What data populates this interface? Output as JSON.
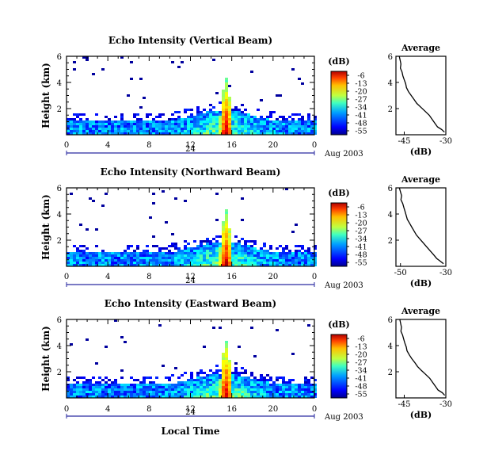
{
  "chart_data": [
    {
      "type": "heatmap",
      "title": "Echo Intensity (Vertical Beam)",
      "ylabel": "Height (km)",
      "xlim": [
        0,
        24
      ],
      "ylim": [
        0,
        6
      ],
      "x_ticks": [
        "0",
        "4",
        "8",
        "12",
        "16",
        "20",
        "0"
      ],
      "y_ticks": [
        "2",
        "4",
        "6"
      ],
      "date_label": "24",
      "date_suffix": "Aug 2003",
      "colorbar": {
        "label": "(dB)",
        "ticks": [
          "-6",
          "-13",
          "-20",
          "-27",
          "-34",
          "-41",
          "-48",
          "-55"
        ],
        "range": [
          -55,
          -6
        ]
      },
      "average_profile": {
        "title": "Average",
        "xlabel": "(dB)",
        "x_ticks": [
          "-45",
          "-30"
        ],
        "xlim": [
          -48,
          -30
        ],
        "y_ticks": [
          "2",
          "4",
          "6"
        ],
        "ylim": [
          0,
          6
        ],
        "x": [
          -46.8,
          -46.5,
          -46.2,
          -46.4,
          -45.8,
          -45.5,
          -45.0,
          -44.5,
          -44.2,
          -43.5,
          -42.5,
          -41.5,
          -40.5,
          -39.0,
          -37.5,
          -36.0,
          -35.0,
          -34.0,
          -33.0,
          -31.5,
          -30.5
        ],
        "y": [
          6.0,
          5.7,
          5.4,
          5.1,
          4.8,
          4.5,
          4.2,
          3.9,
          3.6,
          3.3,
          3.0,
          2.7,
          2.4,
          2.1,
          1.8,
          1.5,
          1.2,
          0.9,
          0.6,
          0.4,
          0.2
        ]
      }
    },
    {
      "type": "heatmap",
      "title": "Echo Intensity (Northward Beam)",
      "ylabel": "Height (km)",
      "xlim": [
        0,
        24
      ],
      "ylim": [
        0,
        6
      ],
      "x_ticks": [
        "0",
        "4",
        "8",
        "12",
        "16",
        "20",
        "0"
      ],
      "y_ticks": [
        "2",
        "4",
        "6"
      ],
      "date_label": "24",
      "date_suffix": "Aug 2003",
      "colorbar": {
        "label": "(dB)",
        "ticks": [
          "-6",
          "-13",
          "-20",
          "-27",
          "-34",
          "-41",
          "-48",
          "-55"
        ],
        "range": [
          -55,
          -6
        ]
      },
      "average_profile": {
        "title": "Average",
        "xlabel": "(dB)",
        "x_ticks": [
          "-50",
          "-30"
        ],
        "xlim": [
          -52,
          -30
        ],
        "y_ticks": [
          "2",
          "4",
          "6"
        ],
        "ylim": [
          0,
          6
        ],
        "x": [
          -50.5,
          -50.0,
          -49.5,
          -49.8,
          -49.0,
          -48.5,
          -48.0,
          -47.5,
          -47.0,
          -46.0,
          -45.0,
          -44.0,
          -43.0,
          -41.5,
          -40.0,
          -38.5,
          -37.0,
          -35.5,
          -34.0,
          -32.5,
          -31.0
        ],
        "y": [
          6.0,
          5.7,
          5.4,
          5.1,
          4.8,
          4.5,
          4.2,
          3.9,
          3.6,
          3.3,
          3.0,
          2.7,
          2.4,
          2.1,
          1.8,
          1.5,
          1.2,
          0.9,
          0.6,
          0.4,
          0.2
        ]
      }
    },
    {
      "type": "heatmap",
      "title": "Echo Intensity (Eastward Beam)",
      "ylabel": "Height (km)",
      "xlabel": "Local Time",
      "xlim": [
        0,
        24
      ],
      "ylim": [
        0,
        6
      ],
      "x_ticks": [
        "0",
        "4",
        "8",
        "12",
        "16",
        "20",
        "0"
      ],
      "y_ticks": [
        "2",
        "4",
        "6"
      ],
      "date_label": "24",
      "date_suffix": "Aug 2003",
      "colorbar": {
        "label": "(dB)",
        "ticks": [
          "-6",
          "-13",
          "-20",
          "-27",
          "-34",
          "-41",
          "-48",
          "-55"
        ],
        "range": [
          -55,
          -6
        ]
      },
      "average_profile": {
        "title": "Average",
        "xlabel": "(dB)",
        "x_ticks": [
          "-45",
          "-30"
        ],
        "xlim": [
          -48,
          -30
        ],
        "y_ticks": [
          "2",
          "4",
          "6"
        ],
        "ylim": [
          0,
          6
        ],
        "x": [
          -46.6,
          -46.3,
          -46.0,
          -46.2,
          -45.6,
          -45.2,
          -44.8,
          -44.3,
          -44.0,
          -43.2,
          -42.3,
          -41.2,
          -40.2,
          -38.8,
          -37.3,
          -35.8,
          -34.8,
          -33.8,
          -32.8,
          -31.3,
          -30.4
        ],
        "y": [
          6.0,
          5.7,
          5.4,
          5.1,
          4.8,
          4.5,
          4.2,
          3.9,
          3.6,
          3.3,
          3.0,
          2.7,
          2.4,
          2.1,
          1.8,
          1.5,
          1.2,
          0.9,
          0.6,
          0.4,
          0.2
        ]
      }
    }
  ]
}
